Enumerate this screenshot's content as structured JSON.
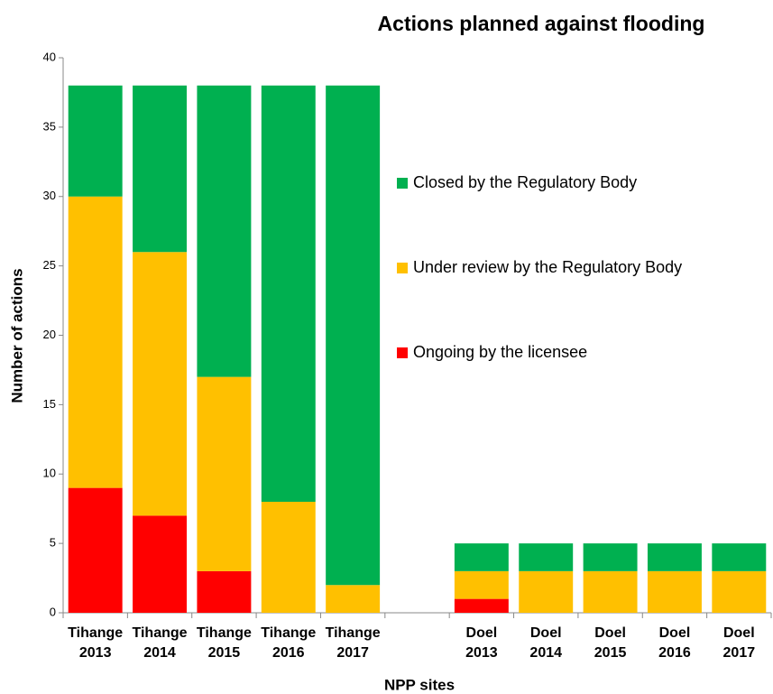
{
  "chart_data": {
    "type": "stacked_bar",
    "title": "Actions planned against flooding",
    "xlabel": "NPP sites",
    "ylabel": "Number of actions",
    "categories": [
      "Tihange 2013",
      "Tihange 2014",
      "Tihange 2015",
      "Tihange 2016",
      "Tihange 2017",
      null,
      "Doel 2013",
      "Doel 2014",
      "Doel 2015",
      "Doel 2016",
      "Doel 2017"
    ],
    "series": [
      {
        "name": "Ongoing by the licensee",
        "color": "#ff0000",
        "values": [
          9,
          7,
          3,
          0,
          0,
          null,
          1,
          0,
          0,
          0,
          0
        ]
      },
      {
        "name": "Under review by the Regulatory Body",
        "color": "#ffc000",
        "values": [
          21,
          19,
          14,
          8,
          2,
          null,
          2,
          3,
          3,
          3,
          3
        ]
      },
      {
        "name": "Closed by the Regulatory Body",
        "color": "#00b050",
        "values": [
          8,
          12,
          21,
          30,
          36,
          null,
          2,
          2,
          2,
          2,
          2
        ]
      }
    ],
    "ylim": [
      0,
      40
    ],
    "yticks": [
      0,
      5,
      10,
      15,
      20,
      25,
      30,
      35,
      40
    ],
    "grid": false,
    "legend": "center"
  }
}
